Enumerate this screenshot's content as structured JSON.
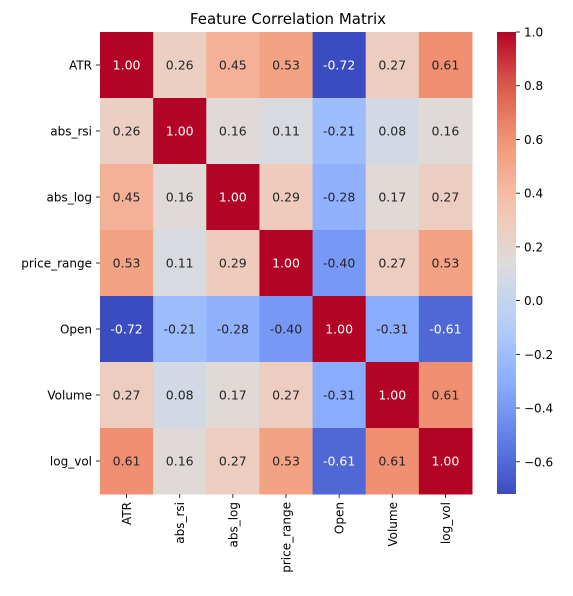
{
  "chart_data": {
    "type": "heatmap",
    "title": "Feature Correlation Matrix",
    "xlabel": "",
    "ylabel": "",
    "colormap": "coolwarm",
    "rows": [
      "ATR",
      "abs_rsi",
      "abs_log",
      "price_range",
      "Open",
      "Volume",
      "log_vol"
    ],
    "columns": [
      "ATR",
      "abs_rsi",
      "abs_log",
      "price_range",
      "Open",
      "Volume",
      "log_vol"
    ],
    "values": [
      [
        1.0,
        0.26,
        0.45,
        0.53,
        -0.72,
        0.27,
        0.61
      ],
      [
        0.26,
        1.0,
        0.16,
        0.11,
        -0.21,
        0.08,
        0.16
      ],
      [
        0.45,
        0.16,
        1.0,
        0.29,
        -0.28,
        0.17,
        0.27
      ],
      [
        0.53,
        0.11,
        0.29,
        1.0,
        -0.4,
        0.27,
        0.53
      ],
      [
        -0.72,
        -0.21,
        -0.28,
        -0.4,
        1.0,
        -0.31,
        -0.61
      ],
      [
        0.27,
        0.08,
        0.17,
        0.27,
        -0.31,
        1.0,
        0.61
      ],
      [
        0.61,
        0.16,
        0.27,
        0.53,
        -0.61,
        0.61,
        1.0
      ]
    ],
    "labels": [
      [
        "1.00",
        "0.26",
        "0.45",
        "0.53",
        "-0.72",
        "0.27",
        "0.61"
      ],
      [
        "0.26",
        "1.00",
        "0.16",
        "0.11",
        "-0.21",
        "0.08",
        "0.16"
      ],
      [
        "0.45",
        "0.16",
        "1.00",
        "0.29",
        "-0.28",
        "0.17",
        "0.27"
      ],
      [
        "0.53",
        "0.11",
        "0.29",
        "1.00",
        "-0.40",
        "0.27",
        "0.53"
      ],
      [
        "-0.72",
        "-0.21",
        "-0.28",
        "-0.40",
        "1.00",
        "-0.31",
        "-0.61"
      ],
      [
        "0.27",
        "0.08",
        "0.17",
        "0.27",
        "-0.31",
        "1.00",
        "0.61"
      ],
      [
        "0.61",
        "0.16",
        "0.27",
        "0.53",
        "-0.61",
        "0.61",
        "1.00"
      ]
    ],
    "colorbar": {
      "vmin": -0.72,
      "vmax": 1.0,
      "ticks": [
        -0.6,
        -0.4,
        -0.2,
        0.0,
        0.2,
        0.4,
        0.6,
        0.8,
        1.0
      ],
      "tick_labels": [
        "−0.6",
        "−0.4",
        "−0.2",
        "0.0",
        "0.2",
        "0.4",
        "0.6",
        "0.8",
        "1.0"
      ]
    }
  }
}
